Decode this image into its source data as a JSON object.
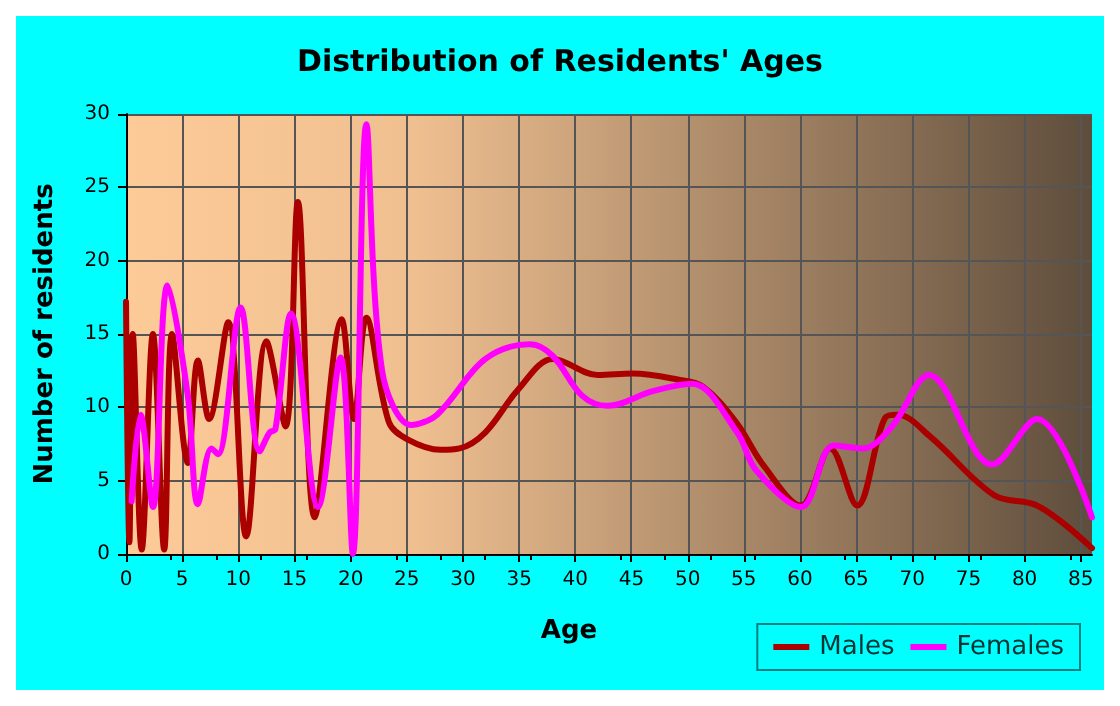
{
  "chart_data": {
    "type": "line",
    "title": "Distribution of Residents' Ages",
    "xlabel": "Age",
    "ylabel": "Number of residents",
    "xlim": [
      0,
      86
    ],
    "xticks": [
      0,
      5,
      10,
      15,
      20,
      25,
      30,
      35,
      40,
      45,
      50,
      55,
      60,
      65,
      70,
      75,
      80,
      85
    ],
    "ylim": [
      0,
      30
    ],
    "yticks": [
      0,
      5,
      10,
      15,
      20,
      25,
      30
    ],
    "grid": true,
    "legend": "bottom right",
    "marker": "none",
    "line_style": "solid",
    "series": [
      {
        "name": "Males",
        "color": "#aa0000",
        "x": [
          0,
          0.3,
          0.6,
          1.4,
          2.4,
          3.4,
          4.1,
          5.5,
          6.4,
          7.4,
          9.1,
          10.7,
          12.5,
          14.2,
          15.3,
          16.8,
          19.2,
          20.3,
          21.4,
          23.4,
          25.1,
          28,
          29.7,
          32,
          34.9,
          38,
          42,
          45.1,
          49.1,
          51.4,
          54.4,
          56.7,
          60.1,
          62.7,
          65.1,
          67.6,
          68.7,
          71.6,
          77.3,
          80.8,
          83.1,
          86
        ],
        "values": [
          17.2,
          0.8,
          15,
          0.3,
          15,
          0.3,
          15,
          6.2,
          13.2,
          9.2,
          15.8,
          1.2,
          14.5,
          8.7,
          24,
          2.5,
          16,
          9.2,
          16.1,
          9,
          7.8,
          7.1,
          7.2,
          8.3,
          11.2,
          13.3,
          12.2,
          12.3,
          11.9,
          11.4,
          8.9,
          6.1,
          3.3,
          7.2,
          3.3,
          9.3,
          9.5,
          8,
          4,
          3.4,
          2.3,
          0.4
        ]
      },
      {
        "name": "Females",
        "color": "#ff00ff",
        "x": [
          0.5,
          1.3,
          2.4,
          3.7,
          5.5,
          6.4,
          7.6,
          8.2,
          10.2,
          11.9,
          12.8,
          13.3,
          14.7,
          17.1,
          19.1,
          20.2,
          21.4,
          22.8,
          25.4,
          27.7,
          32,
          36,
          38,
          40.6,
          42.9,
          46.9,
          50.4,
          54.4,
          56.1,
          60.1,
          63,
          65.6,
          68.2,
          71.5,
          77.1,
          81.1,
          86
        ],
        "values": [
          3.6,
          9.5,
          3.2,
          18.3,
          10.8,
          3.4,
          7.2,
          6.8,
          16.8,
          7,
          8.3,
          8.5,
          16.4,
          3.2,
          13.4,
          0,
          29.3,
          12.5,
          8.8,
          9.5,
          13.3,
          14.3,
          13.5,
          10.8,
          10.1,
          11.1,
          11.6,
          8.3,
          5.7,
          3.2,
          7.4,
          7.2,
          8.7,
          12.2,
          6.1,
          9.2,
          2.5
        ]
      }
    ]
  }
}
